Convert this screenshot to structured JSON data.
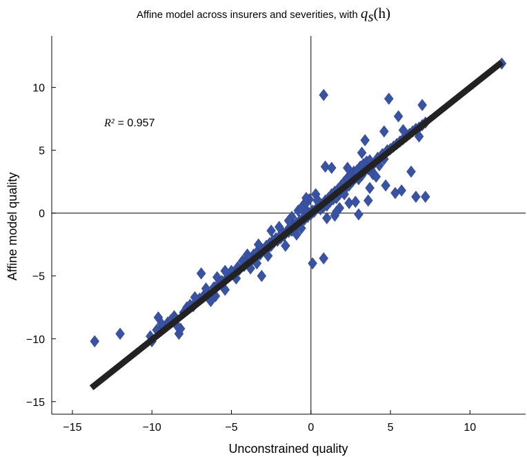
{
  "chart_data": {
    "type": "scatter",
    "title": {
      "text": "Affine model across insurers and severities, with ",
      "math_var": "q",
      "math_sub": "s",
      "math_arg": "(h)"
    },
    "xlabel": "Unconstrained quality",
    "ylabel": "Affine model quality",
    "xlim": [
      -16.3,
      13.5
    ],
    "ylim": [
      -16.0,
      14.1
    ],
    "xticks": [
      -15,
      -10,
      -5,
      0,
      5,
      10
    ],
    "yticks": [
      -15,
      -10,
      -5,
      0,
      5,
      10
    ],
    "xtick_labels": [
      "−15",
      "−10",
      "−5",
      "0",
      "5",
      "10"
    ],
    "ytick_labels": [
      "−15",
      "−10",
      "−5",
      "0",
      "5",
      "10"
    ],
    "zero_lines": true,
    "grid": false,
    "annotation": {
      "lhs": "R²",
      "rhs": "= 0.957",
      "x": -13,
      "y": 6.9
    },
    "marker_color": "#3953a4",
    "fit_line": {
      "x": [
        -13.8,
        12.0
      ],
      "y": [
        -13.9,
        12.0
      ],
      "color": "#222222"
    },
    "series": [
      {
        "marker": "diamond",
        "points": [
          [
            -13.6,
            -10.2
          ],
          [
            -12.0,
            -9.6
          ],
          [
            -10.1,
            -9.8
          ],
          [
            -10.0,
            -10.2
          ],
          [
            -9.7,
            -9.3
          ],
          [
            -9.6,
            -8.3
          ],
          [
            -9.3,
            -9.0
          ],
          [
            -9.0,
            -8.7
          ],
          [
            -8.8,
            -8.5
          ],
          [
            -8.6,
            -8.2
          ],
          [
            -8.5,
            -8.4
          ],
          [
            -8.3,
            -9.6
          ],
          [
            -8.2,
            -9.2
          ],
          [
            -8.0,
            -7.9
          ],
          [
            -7.8,
            -7.5
          ],
          [
            -7.6,
            -7.3
          ],
          [
            -7.4,
            -7.4
          ],
          [
            -7.2,
            -7.0
          ],
          [
            -7.0,
            -6.8
          ],
          [
            -6.9,
            -4.8
          ],
          [
            -6.7,
            -6.5
          ],
          [
            -6.5,
            -6.3
          ],
          [
            -6.3,
            -7.0
          ],
          [
            -6.1,
            -5.9
          ],
          [
            -5.9,
            -5.1
          ],
          [
            -5.8,
            -5.6
          ],
          [
            -5.6,
            -5.4
          ],
          [
            -5.4,
            -6.1
          ],
          [
            -5.3,
            -5.2
          ],
          [
            -5.1,
            -5.0
          ],
          [
            -5.0,
            -4.6
          ],
          [
            -4.8,
            -4.7
          ],
          [
            -4.6,
            -4.3
          ],
          [
            -4.5,
            -4.5
          ],
          [
            -4.3,
            -3.8
          ],
          [
            -4.2,
            -4.2
          ],
          [
            -4.0,
            -4.0
          ],
          [
            -3.9,
            -3.5
          ],
          [
            -3.8,
            -4.4
          ],
          [
            -3.7,
            -3.7
          ],
          [
            -3.6,
            -3.3
          ],
          [
            -3.5,
            -3.5
          ],
          [
            -3.4,
            -3.1
          ],
          [
            -3.3,
            -2.5
          ],
          [
            -3.2,
            -3.3
          ],
          [
            -3.1,
            -5.0
          ],
          [
            -3.0,
            -2.9
          ],
          [
            -2.9,
            -3.0
          ],
          [
            -2.8,
            -2.6
          ],
          [
            -2.7,
            -2.8
          ],
          [
            -2.6,
            -2.4
          ],
          [
            -2.5,
            -2.6
          ],
          [
            -2.4,
            -2.2
          ],
          [
            -2.3,
            -2.3
          ],
          [
            -2.2,
            -2.0
          ],
          [
            -2.1,
            -2.2
          ],
          [
            -2.0,
            -1.9
          ],
          [
            -1.9,
            -2.0
          ],
          [
            -1.8,
            -1.5
          ],
          [
            -1.7,
            -1.8
          ],
          [
            -1.6,
            -1.6
          ],
          [
            -1.5,
            -1.4
          ],
          [
            -1.4,
            -1.5
          ],
          [
            -1.3,
            -1.2
          ],
          [
            -1.2,
            -1.4
          ],
          [
            -1.1,
            -1.0
          ],
          [
            -1.0,
            -1.1
          ],
          [
            -0.9,
            -0.8
          ],
          [
            -0.8,
            -0.9
          ],
          [
            -0.7,
            -0.6
          ],
          [
            -0.6,
            -0.7
          ],
          [
            -0.5,
            -0.4
          ],
          [
            -0.4,
            -0.5
          ],
          [
            -0.3,
            -0.2
          ],
          [
            -0.2,
            -0.3
          ],
          [
            -0.1,
            0.0
          ],
          [
            0.0,
            -0.1
          ],
          [
            0.1,
            0.2
          ],
          [
            0.2,
            0.1
          ],
          [
            0.3,
            0.3
          ],
          [
            -0.5,
            0.6
          ],
          [
            -0.4,
            0.4
          ],
          [
            -0.3,
            0.8
          ],
          [
            -0.1,
            1.1
          ],
          [
            -0.8,
            0.2
          ],
          [
            -1.2,
            -0.3
          ],
          [
            -2.5,
            -1.4
          ],
          [
            -1.6,
            -2.6
          ],
          [
            -0.9,
            -1.7
          ],
          [
            -0.6,
            -1.2
          ],
          [
            -1.4,
            -0.6
          ],
          [
            -2.0,
            -1.1
          ],
          [
            -2.7,
            -3.4
          ],
          [
            -3.4,
            -4.0
          ],
          [
            -4.0,
            -3.3
          ],
          [
            -4.7,
            -5.2
          ],
          [
            -5.4,
            -4.6
          ],
          [
            -6.0,
            -6.6
          ],
          [
            -7.3,
            -6.7
          ],
          [
            -8.4,
            -9.0
          ],
          [
            -9.4,
            -8.8
          ],
          [
            -6.6,
            -6.0
          ],
          [
            0.1,
            -4.0
          ],
          [
            0.8,
            -3.6
          ],
          [
            0.8,
            9.4
          ],
          [
            0.9,
            3.7
          ],
          [
            1.3,
            3.6
          ],
          [
            0.5,
            0.9
          ],
          [
            0.6,
            0.3
          ],
          [
            0.7,
            0.7
          ],
          [
            0.8,
            0.5
          ],
          [
            0.9,
            1.0
          ],
          [
            1.0,
            0.6
          ],
          [
            1.1,
            1.2
          ],
          [
            1.2,
            0.9
          ],
          [
            1.3,
            1.5
          ],
          [
            1.4,
            1.1
          ],
          [
            1.5,
            1.7
          ],
          [
            1.6,
            1.2
          ],
          [
            1.7,
            1.9
          ],
          [
            1.8,
            1.5
          ],
          [
            1.9,
            2.2
          ],
          [
            2.0,
            1.8
          ],
          [
            2.1,
            2.5
          ],
          [
            2.2,
            2.0
          ],
          [
            2.3,
            2.8
          ],
          [
            2.4,
            2.2
          ],
          [
            2.5,
            3.0
          ],
          [
            2.6,
            2.5
          ],
          [
            2.7,
            3.3
          ],
          [
            2.8,
            2.8
          ],
          [
            2.9,
            3.4
          ],
          [
            3.0,
            2.7
          ],
          [
            3.1,
            3.7
          ],
          [
            3.2,
            3.0
          ],
          [
            3.3,
            3.9
          ],
          [
            3.4,
            3.4
          ],
          [
            3.5,
            4.1
          ],
          [
            3.6,
            3.5
          ],
          [
            3.7,
            4.2
          ],
          [
            3.8,
            3.4
          ],
          [
            3.9,
            3.1
          ],
          [
            4.0,
            4.0
          ],
          [
            4.2,
            4.4
          ],
          [
            4.3,
            3.8
          ],
          [
            4.5,
            4.7
          ],
          [
            4.6,
            4.3
          ],
          [
            4.8,
            5.0
          ],
          [
            5.0,
            5.1
          ],
          [
            5.2,
            5.3
          ],
          [
            5.4,
            5.5
          ],
          [
            5.6,
            5.7
          ],
          [
            5.8,
            5.9
          ],
          [
            6.0,
            6.1
          ],
          [
            6.2,
            6.3
          ],
          [
            6.4,
            6.5
          ],
          [
            6.6,
            6.7
          ],
          [
            6.8,
            6.8
          ],
          [
            7.0,
            7.0
          ],
          [
            7.2,
            7.2
          ],
          [
            12.0,
            11.9
          ],
          [
            4.9,
            9.1
          ],
          [
            5.5,
            7.7
          ],
          [
            5.8,
            6.6
          ],
          [
            6.8,
            6.1
          ],
          [
            7.0,
            8.6
          ],
          [
            4.6,
            6.5
          ],
          [
            3.4,
            5.8
          ],
          [
            3.2,
            4.8
          ],
          [
            3.8,
            3.7
          ],
          [
            4.7,
            2.2
          ],
          [
            4.1,
            2.9
          ],
          [
            2.3,
            3.6
          ],
          [
            2.9,
            3.3
          ],
          [
            1.5,
            -0.2
          ],
          [
            1.8,
            0.4
          ],
          [
            1.6,
            0.1
          ],
          [
            3.0,
            -0.1
          ],
          [
            2.4,
            0.8
          ],
          [
            2.8,
            0.9
          ],
          [
            3.6,
            1.0
          ],
          [
            3.7,
            2.0
          ],
          [
            5.3,
            1.6
          ],
          [
            5.7,
            1.8
          ],
          [
            6.3,
            3.3
          ],
          [
            6.6,
            1.3
          ],
          [
            7.2,
            1.3
          ],
          [
            -0.3,
            1.2
          ],
          [
            0.3,
            1.5
          ],
          [
            0.4,
            1.0
          ],
          [
            1.0,
            -0.4
          ],
          [
            -0.6,
            0.4
          ],
          [
            2.1,
            1.5
          ]
        ]
      }
    ]
  }
}
